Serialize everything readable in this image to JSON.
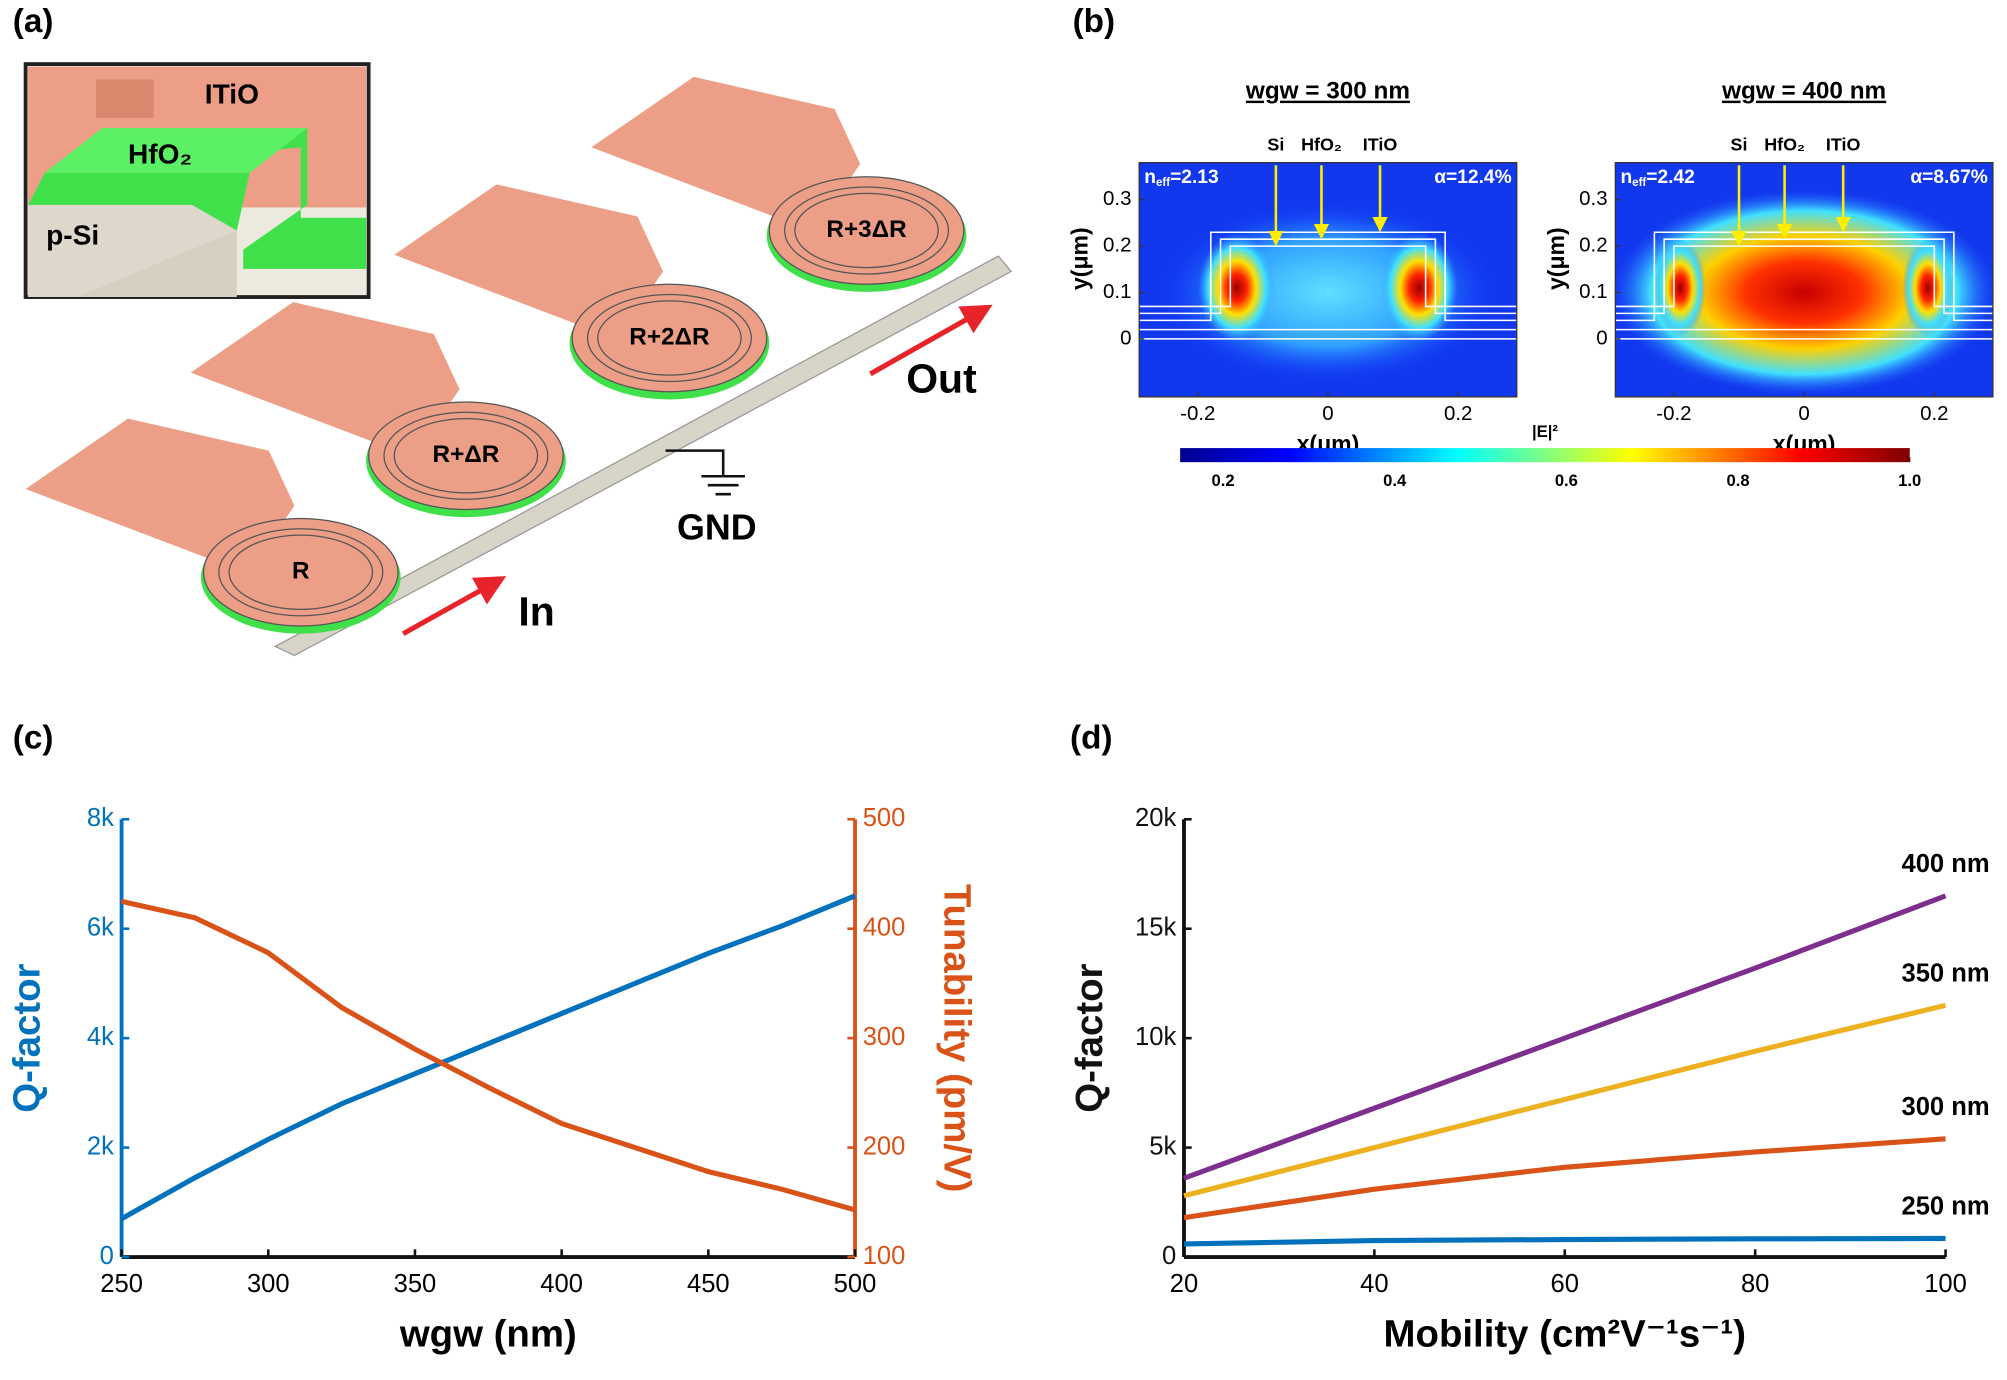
{
  "panel_labels": [
    "(a)",
    "(b)",
    "(c)",
    "(d)"
  ],
  "device": {
    "inset": {
      "top": "ITiO",
      "middle": "HfO₂",
      "bottom": "p-Si"
    },
    "rings": [
      "R",
      "R+ΔR",
      "R+2ΔR",
      "R+3ΔR"
    ],
    "ground": "GND",
    "input": "In",
    "output": "Out"
  },
  "mode_plots": {
    "panels": [
      {
        "title": "wgw = 300 nm",
        "neff": {
          "symbol": "n",
          "subscript": "eff",
          "value": "=2.13"
        },
        "alpha": "α=12.4%"
      },
      {
        "title": "wgw = 400 nm",
        "neff": {
          "symbol": "n",
          "subscript": "eff",
          "value": "=2.42"
        },
        "alpha": "α=8.67%"
      }
    ],
    "layers": [
      "Si",
      "HfO₂",
      "ITiO"
    ],
    "xlabel": "x(μm)",
    "ylabel": "y(μm)",
    "xlim": [
      -0.29,
      0.29
    ],
    "xticks": [
      -0.2,
      0,
      0.2
    ],
    "ylim": [
      -0.125,
      0.38
    ],
    "yticks": [
      0,
      0.1,
      0.2,
      0.3
    ],
    "colorbar": {
      "label": "|E|²",
      "lim": [
        0.15,
        1
      ],
      "ticks": [
        0.2,
        0.4,
        0.6,
        0.8,
        {
          "value": 1,
          "label": "1.0"
        }
      ]
    }
  },
  "chart_data": [
    {
      "type": "line",
      "xlabel": "wgw (nm)",
      "ylabel": "Q-factor",
      "y2label": "Tunability (pm/V)",
      "x": [
        250,
        275,
        300,
        325,
        350,
        375,
        400,
        425,
        450,
        475,
        500
      ],
      "xlim": [
        250,
        500
      ],
      "xticks": [
        250,
        300,
        350,
        400,
        450,
        500
      ],
      "ylim": [
        0,
        8000
      ],
      "yticks": [
        0,
        {
          "value": 2000,
          "label": "2k"
        },
        {
          "value": 4000,
          "label": "4k"
        },
        {
          "value": 6000,
          "label": "6k"
        },
        {
          "value": 8000,
          "label": "8k"
        }
      ],
      "y2lim": [
        100,
        500
      ],
      "y2ticks": [
        100,
        200,
        300,
        400,
        500
      ],
      "axis_colors_from_series": true,
      "series": [
        {
          "color": "#0072bd",
          "values": [
            700,
            1450,
            2150,
            2800,
            3350,
            3900,
            4450,
            5000,
            5550,
            6050,
            6600
          ]
        },
        {
          "color": "#d95319",
          "axis": "y2",
          "values": [
            425,
            410,
            378,
            328,
            290,
            255,
            222,
            200,
            178,
            162,
            143
          ]
        }
      ]
    },
    {
      "type": "line",
      "xlabel": "Mobility (cm²V⁻¹s⁻¹)",
      "ylabel": "Q-factor",
      "x": [
        20,
        40,
        60,
        80,
        100
      ],
      "xlim": [
        20,
        100
      ],
      "xticks": [
        20,
        40,
        60,
        80,
        100
      ],
      "ylim": [
        0,
        20000
      ],
      "yticks": [
        0,
        {
          "value": 5000,
          "label": "5k"
        },
        {
          "value": 10000,
          "label": "10k"
        },
        {
          "value": 15000,
          "label": "15k"
        },
        {
          "value": 20000,
          "label": "20k"
        }
      ],
      "end_labels": true,
      "series": [
        {
          "name": "250 nm",
          "color": "#0072bd",
          "values": [
            600,
            750,
            800,
            830,
            850
          ]
        },
        {
          "name": "300 nm",
          "color": "#d95319",
          "values": [
            1800,
            3100,
            4100,
            4800,
            5400
          ]
        },
        {
          "name": "350 nm",
          "color": "#edb120",
          "values": [
            2800,
            5000,
            7200,
            9400,
            11500
          ]
        },
        {
          "name": "400 nm",
          "color": "#7e2f8e",
          "values": [
            3600,
            6800,
            10000,
            13200,
            16500
          ]
        }
      ]
    }
  ]
}
